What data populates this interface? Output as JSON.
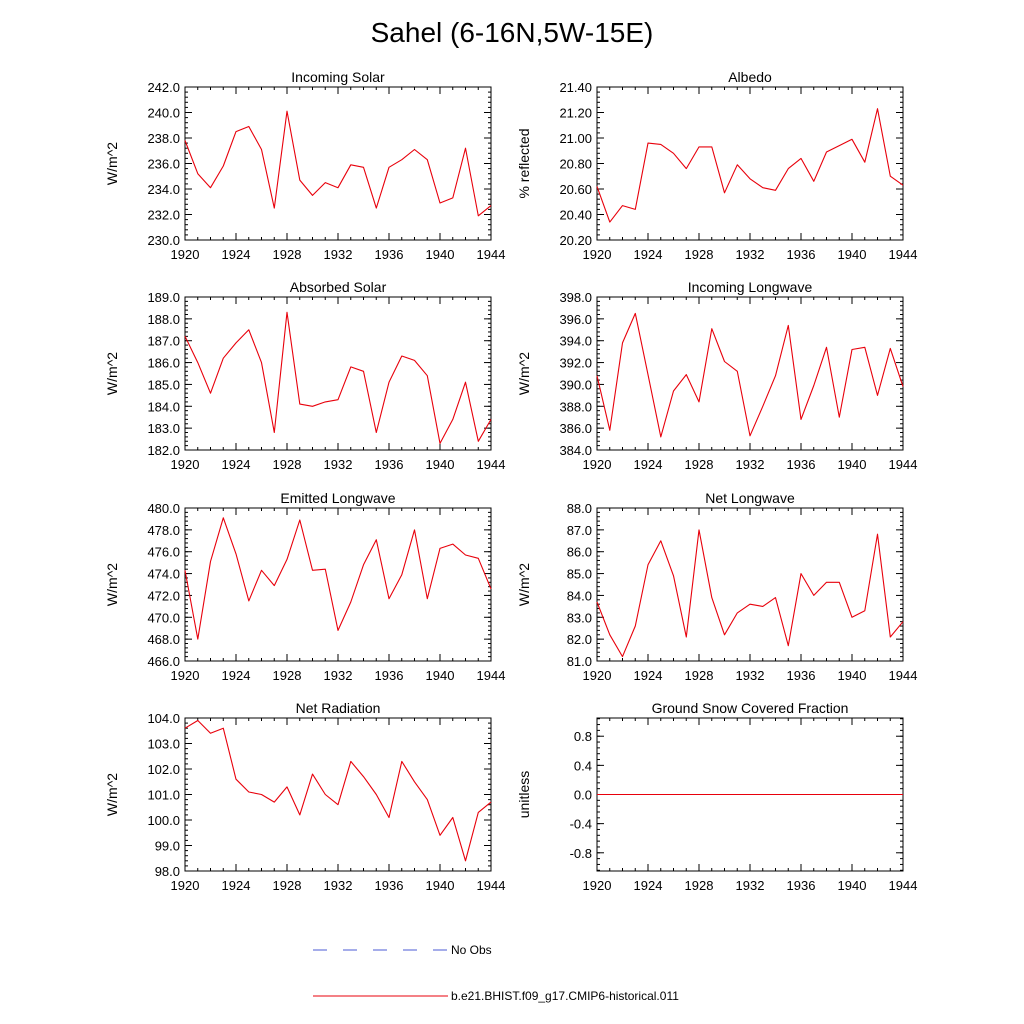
{
  "figure_title": "Sahel (6-16N,5W-15E)",
  "legend": {
    "obs_label": "No Obs",
    "model_label": "b.e21.BHIST.f09_g17.CMIP6-historical.011",
    "obs_color": "#4b5bd6",
    "model_color": "#e8000b"
  },
  "chart_data": [
    {
      "type": "line",
      "title": "Incoming Solar",
      "ylabel": "W/m^2",
      "xlim": [
        1920,
        1944
      ],
      "ylim": [
        230,
        242
      ],
      "yticks": [
        230,
        232,
        234,
        236,
        238,
        240,
        242
      ],
      "ytick_labels": [
        "230.0",
        "232.0",
        "234.0",
        "236.0",
        "238.0",
        "240.0",
        "242.0"
      ],
      "xticks": [
        1920,
        1924,
        1928,
        1932,
        1936,
        1940,
        1944
      ],
      "series": [
        {
          "values": [
            237.8,
            235.2,
            234.1,
            235.8,
            238.5,
            238.9,
            237.1,
            232.5,
            240.1,
            234.7,
            233.5,
            234.5,
            234.1,
            235.9,
            235.7,
            232.5,
            235.7,
            236.3,
            237.1,
            236.3,
            232.9,
            233.3,
            237.2,
            231.9,
            232.7
          ]
        }
      ]
    },
    {
      "type": "line",
      "title": "Albedo",
      "ylabel": "% reflected",
      "xlim": [
        1920,
        1944
      ],
      "ylim": [
        20.2,
        21.4
      ],
      "yticks": [
        20.2,
        20.4,
        20.6,
        20.8,
        21.0,
        21.2,
        21.4
      ],
      "ytick_labels": [
        "20.20",
        "20.40",
        "20.60",
        "20.80",
        "21.00",
        "21.20",
        "21.40"
      ],
      "xticks": [
        1920,
        1924,
        1928,
        1932,
        1936,
        1940,
        1944
      ],
      "series": [
        {
          "values": [
            20.62,
            20.34,
            20.47,
            20.44,
            20.96,
            20.95,
            20.88,
            20.76,
            20.93,
            20.93,
            20.57,
            20.79,
            20.68,
            20.61,
            20.59,
            20.76,
            20.84,
            20.66,
            20.89,
            20.94,
            20.99,
            20.81,
            21.23,
            20.7,
            20.63
          ]
        }
      ]
    },
    {
      "type": "line",
      "title": "Absorbed Solar",
      "ylabel": "W/m^2",
      "xlim": [
        1920,
        1944
      ],
      "ylim": [
        182,
        189
      ],
      "yticks": [
        182,
        183,
        184,
        185,
        186,
        187,
        188,
        189
      ],
      "ytick_labels": [
        "182.0",
        "183.0",
        "184.0",
        "185.0",
        "186.0",
        "187.0",
        "188.0",
        "189.0"
      ],
      "xticks": [
        1920,
        1924,
        1928,
        1932,
        1936,
        1940,
        1944
      ],
      "series": [
        {
          "values": [
            187.2,
            186.0,
            184.6,
            186.2,
            186.9,
            187.5,
            186.0,
            182.8,
            188.3,
            184.1,
            184.0,
            184.2,
            184.3,
            185.8,
            185.6,
            182.8,
            185.1,
            186.3,
            186.1,
            185.4,
            182.3,
            183.4,
            185.1,
            182.4,
            183.4
          ]
        }
      ]
    },
    {
      "type": "line",
      "title": "Incoming Longwave",
      "ylabel": "W/m^2",
      "xlim": [
        1920,
        1944
      ],
      "ylim": [
        384,
        398
      ],
      "yticks": [
        384,
        386,
        388,
        390,
        392,
        394,
        396,
        398
      ],
      "ytick_labels": [
        "384.0",
        "386.0",
        "388.0",
        "390.0",
        "392.0",
        "394.0",
        "396.0",
        "398.0"
      ],
      "xticks": [
        1920,
        1924,
        1928,
        1932,
        1936,
        1940,
        1944
      ],
      "series": [
        {
          "values": [
            390.8,
            385.8,
            393.8,
            396.5,
            390.9,
            385.2,
            389.4,
            390.9,
            388.4,
            395.1,
            392.1,
            391.2,
            385.3,
            388.0,
            390.8,
            395.4,
            386.8,
            389.9,
            393.4,
            387.0,
            393.2,
            393.4,
            389.0,
            393.3,
            389.8
          ]
        }
      ]
    },
    {
      "type": "line",
      "title": "Emitted Longwave",
      "ylabel": "W/m^2",
      "xlim": [
        1920,
        1944
      ],
      "ylim": [
        466,
        480
      ],
      "yticks": [
        466,
        468,
        470,
        472,
        474,
        476,
        478,
        480
      ],
      "ytick_labels": [
        "466.0",
        "468.0",
        "470.0",
        "472.0",
        "474.0",
        "476.0",
        "478.0",
        "480.0"
      ],
      "xticks": [
        1920,
        1924,
        1928,
        1932,
        1936,
        1940,
        1944
      ],
      "series": [
        {
          "values": [
            474.3,
            468.0,
            475.1,
            479.1,
            475.8,
            471.5,
            474.3,
            472.9,
            475.3,
            478.9,
            474.3,
            474.4,
            468.8,
            471.4,
            474.8,
            477.1,
            471.7,
            473.9,
            478.0,
            471.7,
            476.3,
            476.7,
            475.7,
            475.4,
            472.6
          ]
        }
      ]
    },
    {
      "type": "line",
      "title": "Net Longwave",
      "ylabel": "W/m^2",
      "xlim": [
        1920,
        1944
      ],
      "ylim": [
        81,
        88
      ],
      "yticks": [
        81,
        82,
        83,
        84,
        85,
        86,
        87,
        88
      ],
      "ytick_labels": [
        "81.0",
        "82.0",
        "83.0",
        "84.0",
        "85.0",
        "86.0",
        "87.0",
        "88.0"
      ],
      "xticks": [
        1920,
        1924,
        1928,
        1932,
        1936,
        1940,
        1944
      ],
      "series": [
        {
          "values": [
            83.7,
            82.2,
            81.2,
            82.6,
            85.4,
            86.5,
            84.9,
            82.1,
            87.0,
            83.9,
            82.2,
            83.2,
            83.6,
            83.5,
            83.9,
            81.7,
            85.0,
            84.0,
            84.6,
            84.6,
            83.0,
            83.3,
            86.8,
            82.1,
            82.8
          ]
        }
      ]
    },
    {
      "type": "line",
      "title": "Net Radiation",
      "ylabel": "W/m^2",
      "xlim": [
        1920,
        1944
      ],
      "ylim": [
        98,
        104
      ],
      "yticks": [
        98,
        99,
        100,
        101,
        102,
        103,
        104
      ],
      "ytick_labels": [
        "98.0",
        "99.0",
        "100.0",
        "101.0",
        "102.0",
        "103.0",
        "104.0"
      ],
      "xticks": [
        1920,
        1924,
        1928,
        1932,
        1936,
        1940,
        1944
      ],
      "series": [
        {
          "values": [
            103.6,
            103.9,
            103.4,
            103.6,
            101.6,
            101.1,
            101.0,
            100.7,
            101.3,
            100.2,
            101.8,
            101.0,
            100.6,
            102.3,
            101.7,
            101.0,
            100.1,
            102.3,
            101.5,
            100.8,
            99.4,
            100.1,
            98.4,
            100.3,
            100.7
          ]
        }
      ]
    },
    {
      "type": "line",
      "title": "Ground Snow Covered Fraction",
      "ylabel": "unitless",
      "xlim": [
        1920,
        1944
      ],
      "ylim": [
        -1.05,
        1.05
      ],
      "yticks": [
        -0.8,
        -0.4,
        0.0,
        0.4,
        0.8
      ],
      "ytick_labels": [
        "-0.8",
        "-0.4",
        "0.0",
        "0.4",
        "0.8"
      ],
      "xticks": [
        1920,
        1924,
        1928,
        1932,
        1936,
        1940,
        1944
      ],
      "series": [
        {
          "values": [
            0,
            0,
            0,
            0,
            0,
            0,
            0,
            0,
            0,
            0,
            0,
            0,
            0,
            0,
            0,
            0,
            0,
            0,
            0,
            0,
            0,
            0,
            0,
            0,
            0
          ]
        }
      ]
    }
  ]
}
